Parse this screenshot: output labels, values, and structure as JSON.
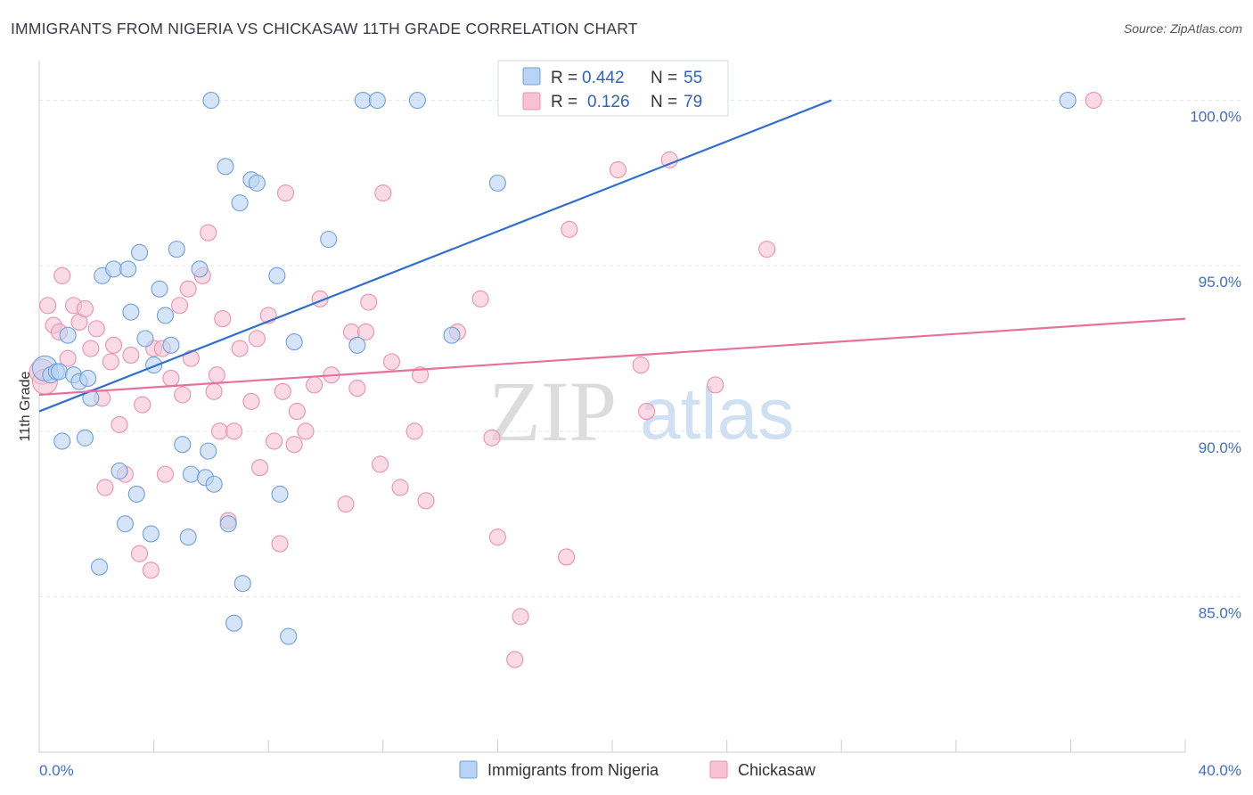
{
  "header": {
    "title": "IMMIGRANTS FROM NIGERIA VS CHICKASAW 11TH GRADE CORRELATION CHART",
    "source": "Source: ZipAtlas.com"
  },
  "watermark": {
    "zip": "ZIP",
    "atlas": "atlas"
  },
  "colors": {
    "blue_fill": "#b9d3f2",
    "blue_stroke": "#6f9ee0",
    "blue_line": "#2f6fd1",
    "pink_fill": "#f7c3d3",
    "pink_stroke": "#ec8fae",
    "pink_line": "#e8709c",
    "grid": "#e2e6ec",
    "axis_text": "#3f6fc4"
  },
  "legend": {
    "rows": [
      {
        "r_label": "R =",
        "r_value": "0.442",
        "n_label": "N =",
        "n_value": "55"
      },
      {
        "r_label": "R =",
        "r_value": "0.126",
        "n_label": "N =",
        "n_value": "79"
      }
    ]
  },
  "bottom_legend": [
    "Immigrants from Nigeria",
    "Chickasaw"
  ],
  "chart_data": {
    "type": "scatter",
    "ylabel": "11th Grade",
    "xlim": [
      0,
      40
    ],
    "ylim": [
      80.3,
      101.2
    ],
    "x_tick_labels": [
      "0.0%",
      "40.0%"
    ],
    "y_ticks": [
      {
        "value": 100,
        "label": "100.0%"
      },
      {
        "value": 95,
        "label": "95.0%"
      },
      {
        "value": 90,
        "label": "90.0%"
      },
      {
        "value": 85,
        "label": "85.0%"
      }
    ],
    "grid": true,
    "series": [
      {
        "name": "Immigrants from Nigeria",
        "color": "blue",
        "trend": {
          "x": [
            0,
            40
          ],
          "y": [
            90.6,
            104.2
          ]
        },
        "points": [
          [
            0.2,
            91.9
          ],
          [
            0.4,
            91.7
          ],
          [
            0.6,
            91.8
          ],
          [
            0.7,
            91.8
          ],
          [
            1.0,
            92.9
          ],
          [
            1.2,
            91.7
          ],
          [
            1.4,
            91.5
          ],
          [
            1.6,
            89.8
          ],
          [
            1.7,
            91.6
          ],
          [
            1.8,
            91.0
          ],
          [
            0.8,
            89.7
          ],
          [
            2.1,
            85.9
          ],
          [
            2.2,
            94.7
          ],
          [
            2.6,
            94.9
          ],
          [
            2.8,
            88.8
          ],
          [
            3.0,
            87.2
          ],
          [
            3.1,
            94.9
          ],
          [
            3.2,
            93.6
          ],
          [
            3.4,
            88.1
          ],
          [
            3.5,
            95.4
          ],
          [
            3.7,
            92.8
          ],
          [
            3.9,
            86.9
          ],
          [
            4.0,
            92.0
          ],
          [
            4.2,
            94.3
          ],
          [
            4.4,
            93.5
          ],
          [
            4.6,
            92.6
          ],
          [
            4.8,
            95.5
          ],
          [
            5.0,
            89.6
          ],
          [
            5.2,
            86.8
          ],
          [
            5.3,
            88.7
          ],
          [
            5.6,
            94.9
          ],
          [
            5.8,
            88.6
          ],
          [
            5.9,
            89.4
          ],
          [
            6.1,
            88.4
          ],
          [
            6.0,
            100.0
          ],
          [
            6.5,
            98.0
          ],
          [
            6.6,
            87.2
          ],
          [
            6.8,
            84.2
          ],
          [
            7.0,
            96.9
          ],
          [
            7.1,
            85.4
          ],
          [
            7.4,
            97.6
          ],
          [
            7.6,
            97.5
          ],
          [
            8.3,
            94.7
          ],
          [
            8.4,
            88.1
          ],
          [
            8.7,
            83.8
          ],
          [
            8.9,
            92.7
          ],
          [
            10.1,
            95.8
          ],
          [
            11.1,
            92.6
          ],
          [
            11.3,
            100.0
          ],
          [
            11.8,
            100.0
          ],
          [
            13.2,
            100.0
          ],
          [
            14.4,
            92.9
          ],
          [
            16.0,
            97.5
          ],
          [
            16.7,
            100.0
          ],
          [
            35.9,
            100.0
          ]
        ]
      },
      {
        "name": "Chickasaw",
        "color": "pink",
        "trend": {
          "x": [
            0,
            40
          ],
          "y": [
            91.1,
            93.4
          ]
        },
        "points": [
          [
            0.1,
            91.8
          ],
          [
            0.2,
            91.5
          ],
          [
            0.3,
            93.8
          ],
          [
            0.5,
            93.2
          ],
          [
            0.7,
            93.0
          ],
          [
            0.8,
            94.7
          ],
          [
            1.0,
            92.2
          ],
          [
            1.2,
            93.8
          ],
          [
            1.4,
            93.3
          ],
          [
            1.6,
            93.7
          ],
          [
            1.8,
            92.5
          ],
          [
            2.0,
            93.1
          ],
          [
            2.2,
            91.0
          ],
          [
            2.3,
            88.3
          ],
          [
            2.5,
            92.1
          ],
          [
            2.6,
            92.6
          ],
          [
            2.8,
            90.2
          ],
          [
            3.0,
            88.7
          ],
          [
            3.2,
            92.3
          ],
          [
            3.5,
            86.3
          ],
          [
            3.6,
            90.8
          ],
          [
            3.9,
            85.8
          ],
          [
            4.0,
            92.5
          ],
          [
            4.3,
            92.5
          ],
          [
            4.4,
            88.7
          ],
          [
            4.6,
            91.6
          ],
          [
            4.9,
            93.8
          ],
          [
            5.0,
            91.1
          ],
          [
            5.2,
            94.3
          ],
          [
            5.3,
            92.2
          ],
          [
            5.7,
            94.7
          ],
          [
            5.9,
            96.0
          ],
          [
            6.1,
            91.2
          ],
          [
            6.2,
            91.7
          ],
          [
            6.3,
            90.0
          ],
          [
            6.4,
            93.4
          ],
          [
            6.6,
            87.3
          ],
          [
            6.8,
            90.0
          ],
          [
            7.0,
            92.5
          ],
          [
            7.4,
            90.9
          ],
          [
            7.6,
            92.8
          ],
          [
            7.7,
            88.9
          ],
          [
            8.0,
            93.5
          ],
          [
            8.2,
            89.7
          ],
          [
            8.4,
            86.6
          ],
          [
            8.5,
            91.2
          ],
          [
            8.6,
            97.2
          ],
          [
            8.9,
            89.6
          ],
          [
            9.0,
            90.6
          ],
          [
            9.3,
            90.0
          ],
          [
            9.6,
            91.4
          ],
          [
            9.8,
            94.0
          ],
          [
            10.2,
            91.7
          ],
          [
            10.7,
            87.8
          ],
          [
            10.9,
            93.0
          ],
          [
            11.1,
            91.3
          ],
          [
            11.4,
            93.0
          ],
          [
            11.5,
            93.9
          ],
          [
            11.9,
            89.0
          ],
          [
            12.0,
            97.2
          ],
          [
            12.3,
            92.1
          ],
          [
            12.6,
            88.3
          ],
          [
            13.1,
            90.0
          ],
          [
            13.3,
            91.7
          ],
          [
            13.5,
            87.9
          ],
          [
            14.6,
            93.0
          ],
          [
            15.4,
            94.0
          ],
          [
            15.8,
            89.8
          ],
          [
            16.0,
            86.8
          ],
          [
            16.6,
            83.1
          ],
          [
            16.8,
            84.4
          ],
          [
            18.4,
            86.2
          ],
          [
            18.5,
            96.1
          ],
          [
            20.2,
            97.9
          ],
          [
            21.0,
            92.0
          ],
          [
            21.2,
            90.6
          ],
          [
            22.0,
            98.2
          ],
          [
            23.6,
            91.4
          ],
          [
            25.4,
            95.5
          ],
          [
            36.8,
            100.0
          ]
        ]
      }
    ]
  }
}
